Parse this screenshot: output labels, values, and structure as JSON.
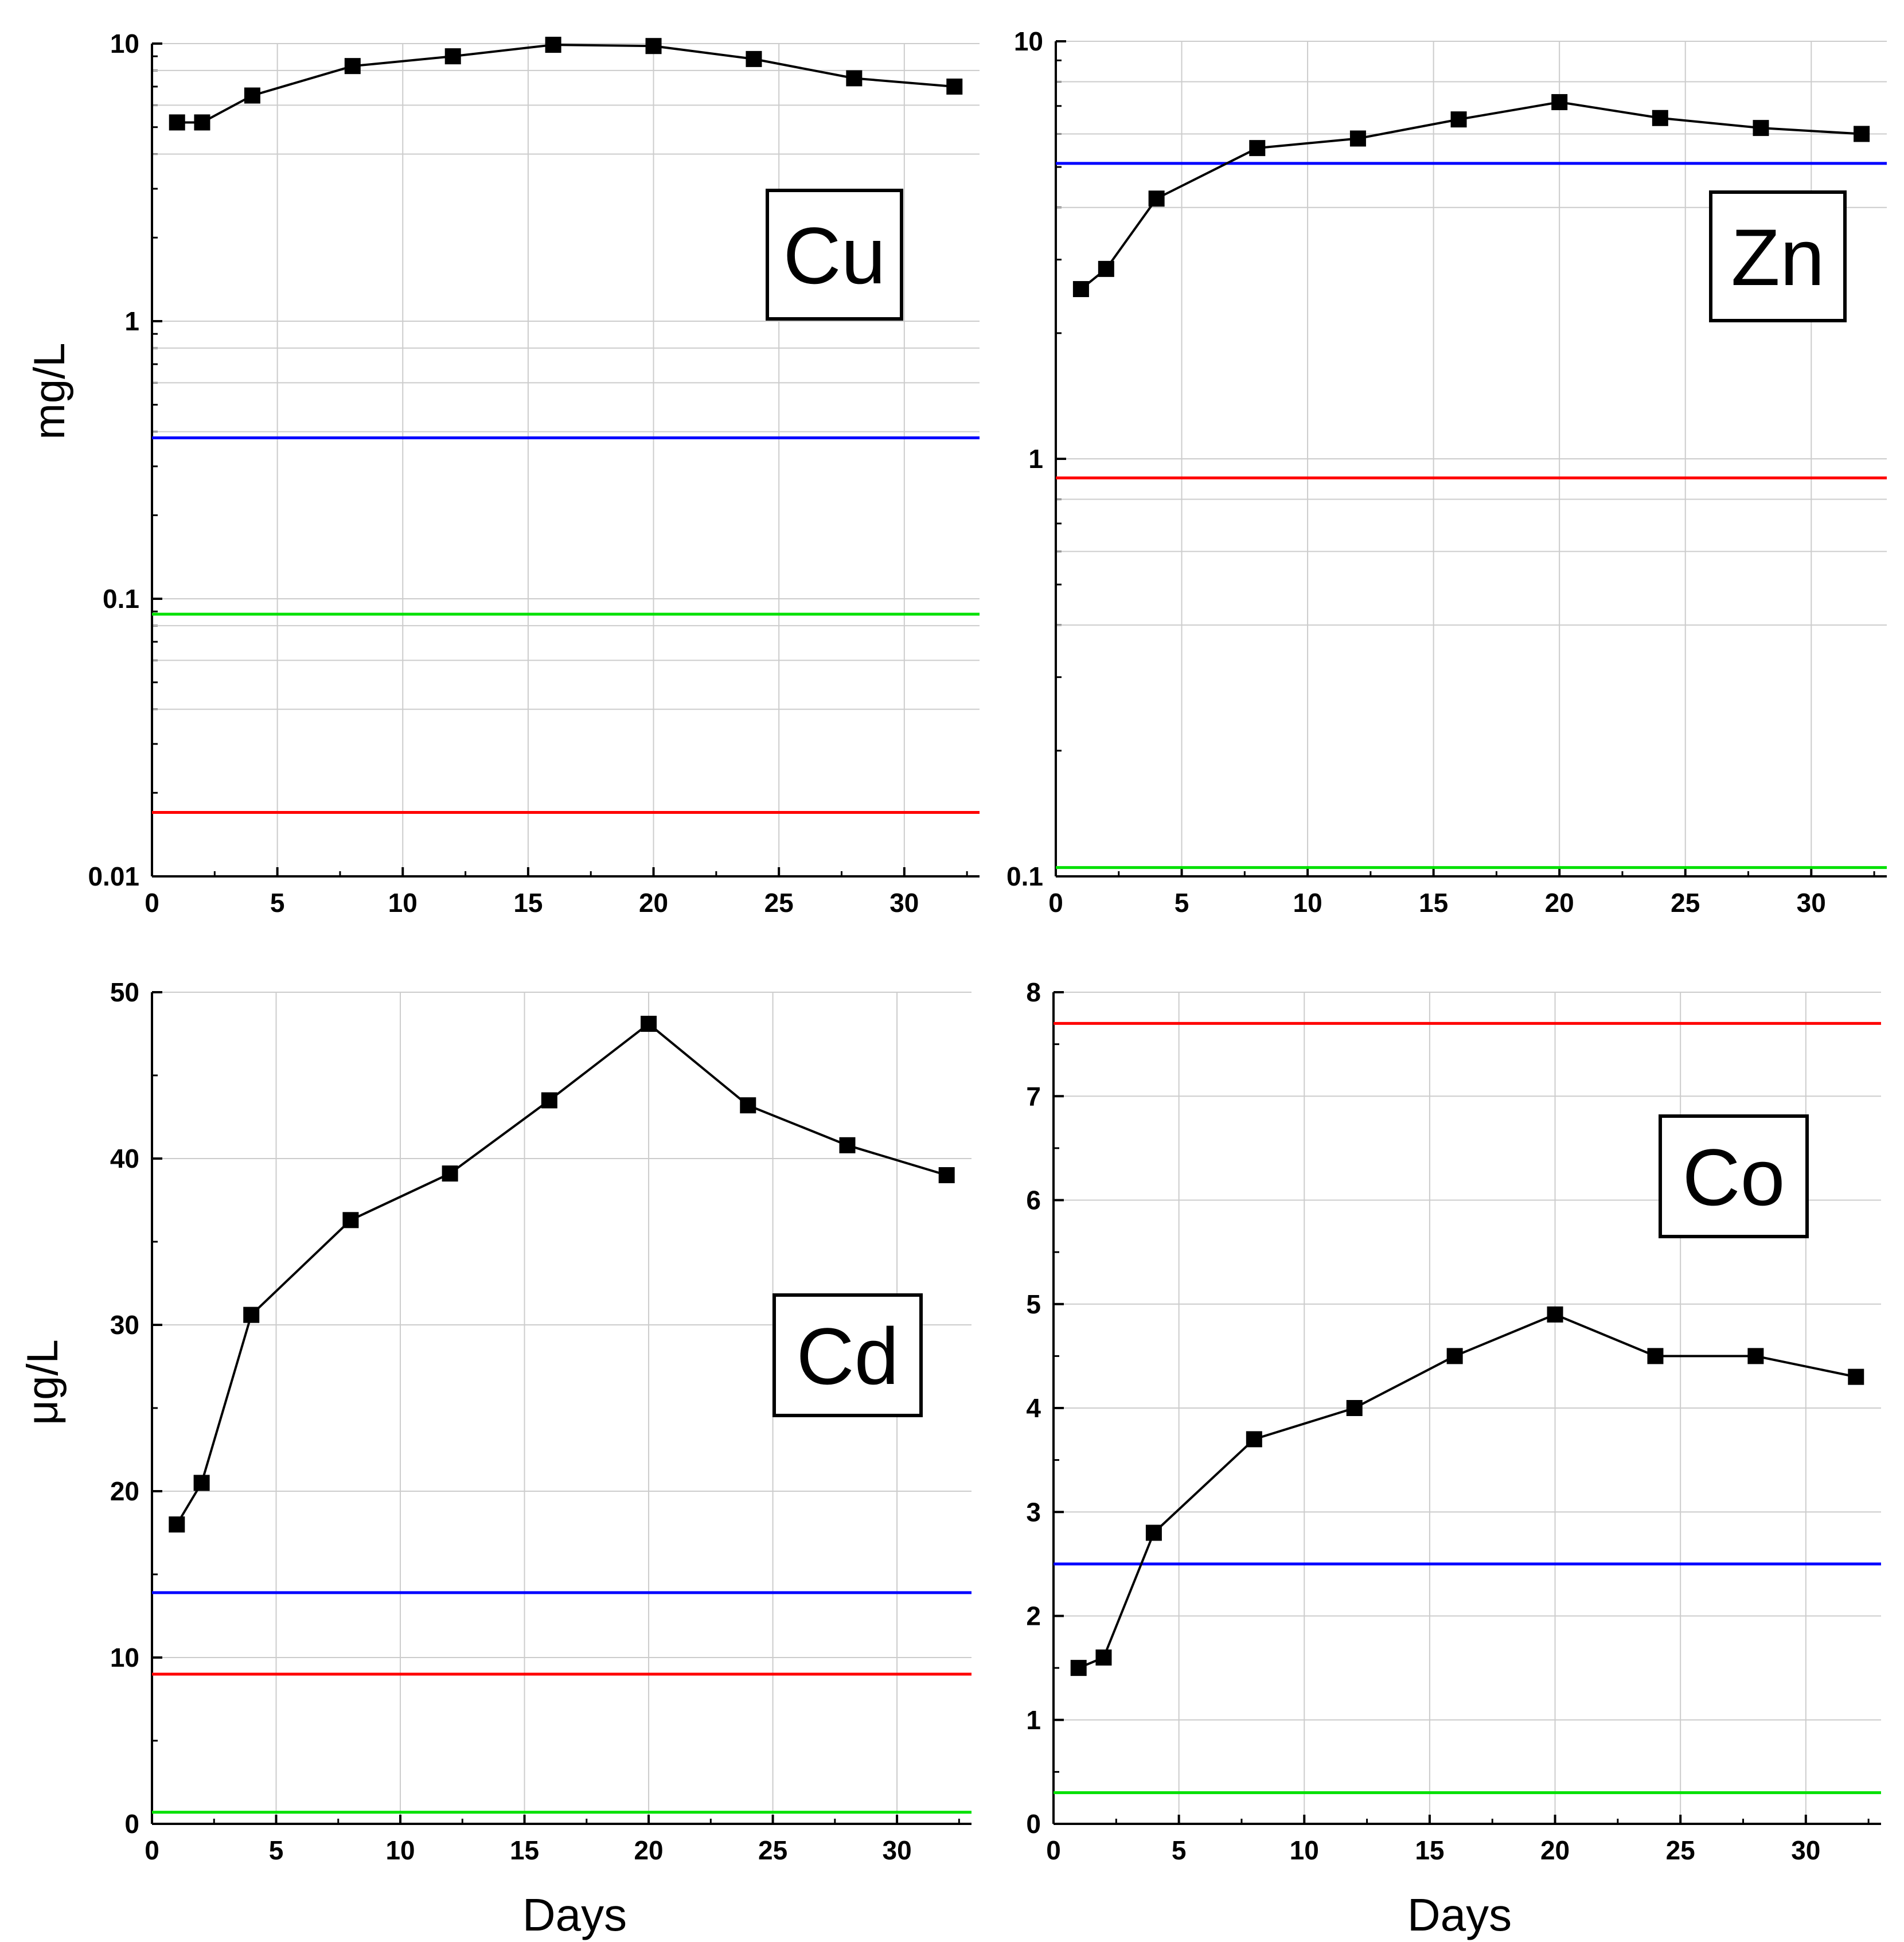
{
  "colors": {
    "blue": "#0000ff",
    "red": "#ff0000",
    "green": "#00e000",
    "series": "#000000",
    "grid": "#cccccc"
  },
  "chart_data": [
    {
      "type": "line",
      "id": "cu",
      "title": "Cu",
      "ylabel": "mg/L",
      "xlabel": "",
      "yscale": "log",
      "ylim": [
        0.01,
        10
      ],
      "xlim": [
        0,
        33
      ],
      "xticks": [
        0,
        5,
        10,
        15,
        20,
        25,
        30
      ],
      "yticks": [
        0.01,
        0.1,
        1,
        10
      ],
      "ytick_labels": [
        "0.01",
        "0.1",
        "1",
        "10"
      ],
      "x": [
        1,
        2,
        4,
        8,
        12,
        16,
        20,
        24,
        28,
        32
      ],
      "values": [
        5.2,
        5.2,
        6.5,
        8.3,
        9.0,
        9.9,
        9.8,
        8.8,
        7.5,
        7.0
      ],
      "reference_lines": [
        {
          "color": "blue",
          "value": 0.38
        },
        {
          "color": "green",
          "value": 0.088
        },
        {
          "color": "red",
          "value": 0.017
        }
      ]
    },
    {
      "type": "line",
      "id": "zn",
      "title": "Zn",
      "ylabel": "",
      "xlabel": "",
      "yscale": "log",
      "ylim": [
        0.1,
        10
      ],
      "xlim": [
        0,
        33
      ],
      "xticks": [
        0,
        5,
        10,
        15,
        20,
        25,
        30
      ],
      "yticks": [
        0.1,
        1,
        10
      ],
      "ytick_labels": [
        "0.1",
        "1",
        "10"
      ],
      "x": [
        1,
        2,
        4,
        8,
        12,
        16,
        20,
        24,
        28,
        32
      ],
      "values": [
        2.55,
        2.85,
        4.2,
        5.55,
        5.85,
        6.5,
        7.15,
        6.55,
        6.2,
        6.0
      ],
      "reference_lines": [
        {
          "color": "blue",
          "value": 5.1
        },
        {
          "color": "red",
          "value": 0.9
        },
        {
          "color": "green",
          "value": 0.105
        }
      ]
    },
    {
      "type": "line",
      "id": "cd",
      "title": "Cd",
      "ylabel": "μg/L",
      "xlabel": "Days",
      "yscale": "linear",
      "ylim": [
        0,
        50
      ],
      "xlim": [
        0,
        33
      ],
      "xticks": [
        0,
        5,
        10,
        15,
        20,
        25,
        30
      ],
      "yticks": [
        0,
        10,
        20,
        30,
        40,
        50
      ],
      "ytick_labels": [
        "0",
        "10",
        "20",
        "30",
        "40",
        "50"
      ],
      "x": [
        1,
        2,
        4,
        8,
        12,
        16,
        20,
        24,
        28,
        32
      ],
      "values": [
        18.0,
        20.5,
        30.6,
        36.3,
        39.1,
        43.5,
        48.1,
        43.2,
        40.8,
        39.0
      ],
      "reference_lines": [
        {
          "color": "blue",
          "value": 13.9
        },
        {
          "color": "red",
          "value": 9.0
        },
        {
          "color": "green",
          "value": 0.7
        }
      ]
    },
    {
      "type": "line",
      "id": "co",
      "title": "Co",
      "ylabel": "",
      "xlabel": "Days",
      "yscale": "linear",
      "ylim": [
        0,
        8
      ],
      "xlim": [
        0,
        33
      ],
      "xticks": [
        0,
        5,
        10,
        15,
        20,
        25,
        30
      ],
      "yticks": [
        0,
        1,
        2,
        3,
        4,
        5,
        6,
        7,
        8
      ],
      "ytick_labels": [
        "0",
        "1",
        "2",
        "3",
        "4",
        "5",
        "6",
        "7",
        "8"
      ],
      "x": [
        1,
        2,
        4,
        8,
        12,
        16,
        20,
        24,
        28,
        32
      ],
      "values": [
        1.5,
        1.6,
        2.8,
        3.7,
        4.0,
        4.5,
        4.9,
        4.5,
        4.5,
        4.3
      ],
      "reference_lines": [
        {
          "color": "red",
          "value": 7.7
        },
        {
          "color": "blue",
          "value": 2.5
        },
        {
          "color": "green",
          "value": 0.3
        }
      ]
    }
  ]
}
